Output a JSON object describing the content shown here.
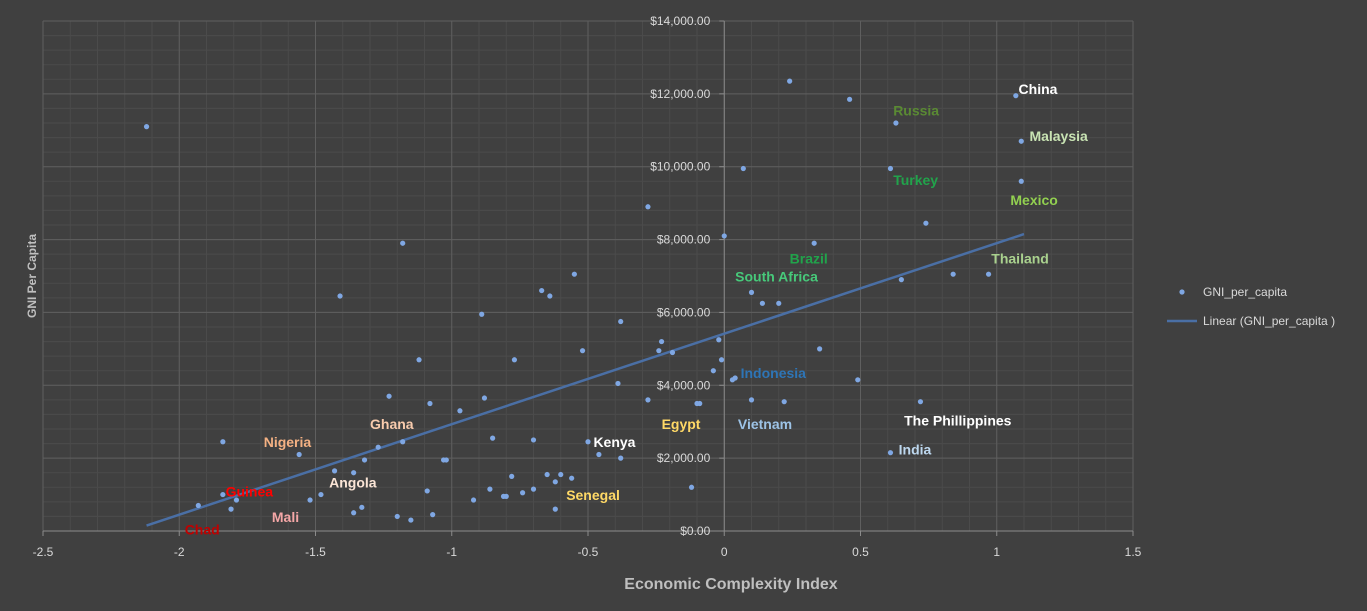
{
  "chart_data": {
    "type": "scatter",
    "xlabel": "Economic Complexity Index",
    "ylabel": "GNI Per Capita",
    "xlim": [
      -2.5,
      1.5
    ],
    "ylim": [
      0,
      14000
    ],
    "x_ticks": [
      "-2.5",
      "-2",
      "-1.5",
      "-1",
      "-0.5",
      "0",
      "0.5",
      "1",
      "1.5"
    ],
    "y_ticks": [
      "$0.00",
      "$2,000.00",
      "$4,000.00",
      "$6,000.00",
      "$8,000.00",
      "$10,000.00",
      "$12,000.00",
      "$14,000.00"
    ],
    "grid": true,
    "legend_position": "right",
    "colors": {
      "background": "#404040",
      "point": "#7fa7e3",
      "trendline": "#4a6fa5",
      "grid": "#5a5a5a"
    },
    "series": [
      {
        "name": "GNI_per_capita",
        "points": [
          [
            -2.12,
            11100
          ],
          [
            -1.93,
            700
          ],
          [
            -1.84,
            1000
          ],
          [
            -1.84,
            2450
          ],
          [
            -1.81,
            600
          ],
          [
            -1.79,
            850
          ],
          [
            -1.56,
            2100
          ],
          [
            -1.52,
            850
          ],
          [
            -1.48,
            1000
          ],
          [
            -1.43,
            1650
          ],
          [
            -1.41,
            6450
          ],
          [
            -1.36,
            500
          ],
          [
            -1.36,
            1600
          ],
          [
            -1.33,
            650
          ],
          [
            -1.32,
            1950
          ],
          [
            -1.27,
            2300
          ],
          [
            -1.23,
            3700
          ],
          [
            -1.2,
            400
          ],
          [
            -1.18,
            7900
          ],
          [
            -1.18,
            2450
          ],
          [
            -1.15,
            300
          ],
          [
            -1.12,
            4700
          ],
          [
            -1.09,
            1100
          ],
          [
            -1.08,
            3500
          ],
          [
            -1.07,
            450
          ],
          [
            -1.03,
            1950
          ],
          [
            -1.02,
            1950
          ],
          [
            -0.97,
            3300
          ],
          [
            -0.92,
            850
          ],
          [
            -0.89,
            5950
          ],
          [
            -0.88,
            3650
          ],
          [
            -0.86,
            1150
          ],
          [
            -0.85,
            2550
          ],
          [
            -0.81,
            950
          ],
          [
            -0.8,
            950
          ],
          [
            -0.78,
            1500
          ],
          [
            -0.77,
            4700
          ],
          [
            -0.74,
            1050
          ],
          [
            -0.7,
            1150
          ],
          [
            -0.7,
            2500
          ],
          [
            -0.67,
            6600
          ],
          [
            -0.65,
            1550
          ],
          [
            -0.64,
            6450
          ],
          [
            -0.62,
            1350
          ],
          [
            -0.62,
            600
          ],
          [
            -0.6,
            1550
          ],
          [
            -0.56,
            1450
          ],
          [
            -0.55,
            7050
          ],
          [
            -0.52,
            4950
          ],
          [
            -0.5,
            2450
          ],
          [
            -0.46,
            2100
          ],
          [
            -0.39,
            4050
          ],
          [
            -0.38,
            5750
          ],
          [
            -0.38,
            2000
          ],
          [
            -0.28,
            8900
          ],
          [
            -0.28,
            3600
          ],
          [
            -0.24,
            4950
          ],
          [
            -0.23,
            5200
          ],
          [
            -0.19,
            4900
          ],
          [
            -0.12,
            1200
          ],
          [
            -0.1,
            3500
          ],
          [
            -0.09,
            3500
          ],
          [
            -0.04,
            4400
          ],
          [
            -0.02,
            5250
          ],
          [
            -0.01,
            4700
          ],
          [
            0,
            8100
          ],
          [
            0.03,
            4150
          ],
          [
            0.04,
            4200
          ],
          [
            0.07,
            9950
          ],
          [
            0.1,
            6550
          ],
          [
            0.1,
            3600
          ],
          [
            0.14,
            6250
          ],
          [
            0.2,
            6250
          ],
          [
            0.22,
            3550
          ],
          [
            0.24,
            12350
          ],
          [
            0.33,
            7900
          ],
          [
            0.35,
            5000
          ],
          [
            0.46,
            11850
          ],
          [
            0.49,
            4150
          ],
          [
            0.61,
            9950
          ],
          [
            0.61,
            2150
          ],
          [
            0.63,
            11200
          ],
          [
            0.65,
            6900
          ],
          [
            0.72,
            3550
          ],
          [
            0.74,
            8450
          ],
          [
            0.84,
            7050
          ],
          [
            0.97,
            7050
          ],
          [
            1.07,
            11950
          ],
          [
            1.09,
            10700
          ],
          [
            1.09,
            9600
          ]
        ]
      },
      {
        "name": "Linear (GNI_per_capita )",
        "type": "line",
        "points": [
          [
            -2.12,
            150
          ],
          [
            1.1,
            8150
          ]
        ]
      }
    ],
    "annotations": [
      {
        "text": "China",
        "x": 1.08,
        "y": 12000,
        "color": "#ffffff"
      },
      {
        "text": "Russia",
        "x": 0.62,
        "y": 11400,
        "color": "#5a8a33"
      },
      {
        "text": "Malaysia",
        "x": 1.12,
        "y": 10700,
        "color": "#c8e3b3"
      },
      {
        "text": "Turkey",
        "x": 0.62,
        "y": 9500,
        "color": "#21a34b"
      },
      {
        "text": "Mexico",
        "x": 1.05,
        "y": 8950,
        "color": "#92d050"
      },
      {
        "text": "Brazil",
        "x": 0.24,
        "y": 7350,
        "color": "#21a34b"
      },
      {
        "text": "Thailand",
        "x": 0.98,
        "y": 7350,
        "color": "#a9d18e"
      },
      {
        "text": "South Africa",
        "x": 0.04,
        "y": 6850,
        "color": "#47c97a"
      },
      {
        "text": "Indonesia",
        "x": 0.06,
        "y": 4200,
        "color": "#2e75b6"
      },
      {
        "text": "The Phillippines",
        "x": 0.66,
        "y": 2900,
        "color": "#ffffff"
      },
      {
        "text": "Egypt",
        "x": -0.23,
        "y": 2800,
        "color": "#ffd966"
      },
      {
        "text": "Vietnam",
        "x": 0.05,
        "y": 2800,
        "color": "#9dc3e6"
      },
      {
        "text": "Ghana",
        "x": -1.3,
        "y": 2800,
        "color": "#f8cbad"
      },
      {
        "text": "Nigeria",
        "x": -1.69,
        "y": 2300,
        "color": "#f4b183"
      },
      {
        "text": "Kenya",
        "x": -0.48,
        "y": 2300,
        "color": "#ffffff"
      },
      {
        "text": "India",
        "x": 0.64,
        "y": 2100,
        "color": "#bdd7ee"
      },
      {
        "text": "Angola",
        "x": -1.45,
        "y": 1200,
        "color": "#fbe5d6"
      },
      {
        "text": "Guinea",
        "x": -1.83,
        "y": 950,
        "color": "#ff0000"
      },
      {
        "text": "Senegal",
        "x": -0.58,
        "y": 850,
        "color": "#ffd966"
      },
      {
        "text": "Mali",
        "x": -1.66,
        "y": 250,
        "color": "#f4a6a6"
      },
      {
        "text": "Chad",
        "x": -1.98,
        "y": -100,
        "color": "#c00000"
      }
    ]
  }
}
